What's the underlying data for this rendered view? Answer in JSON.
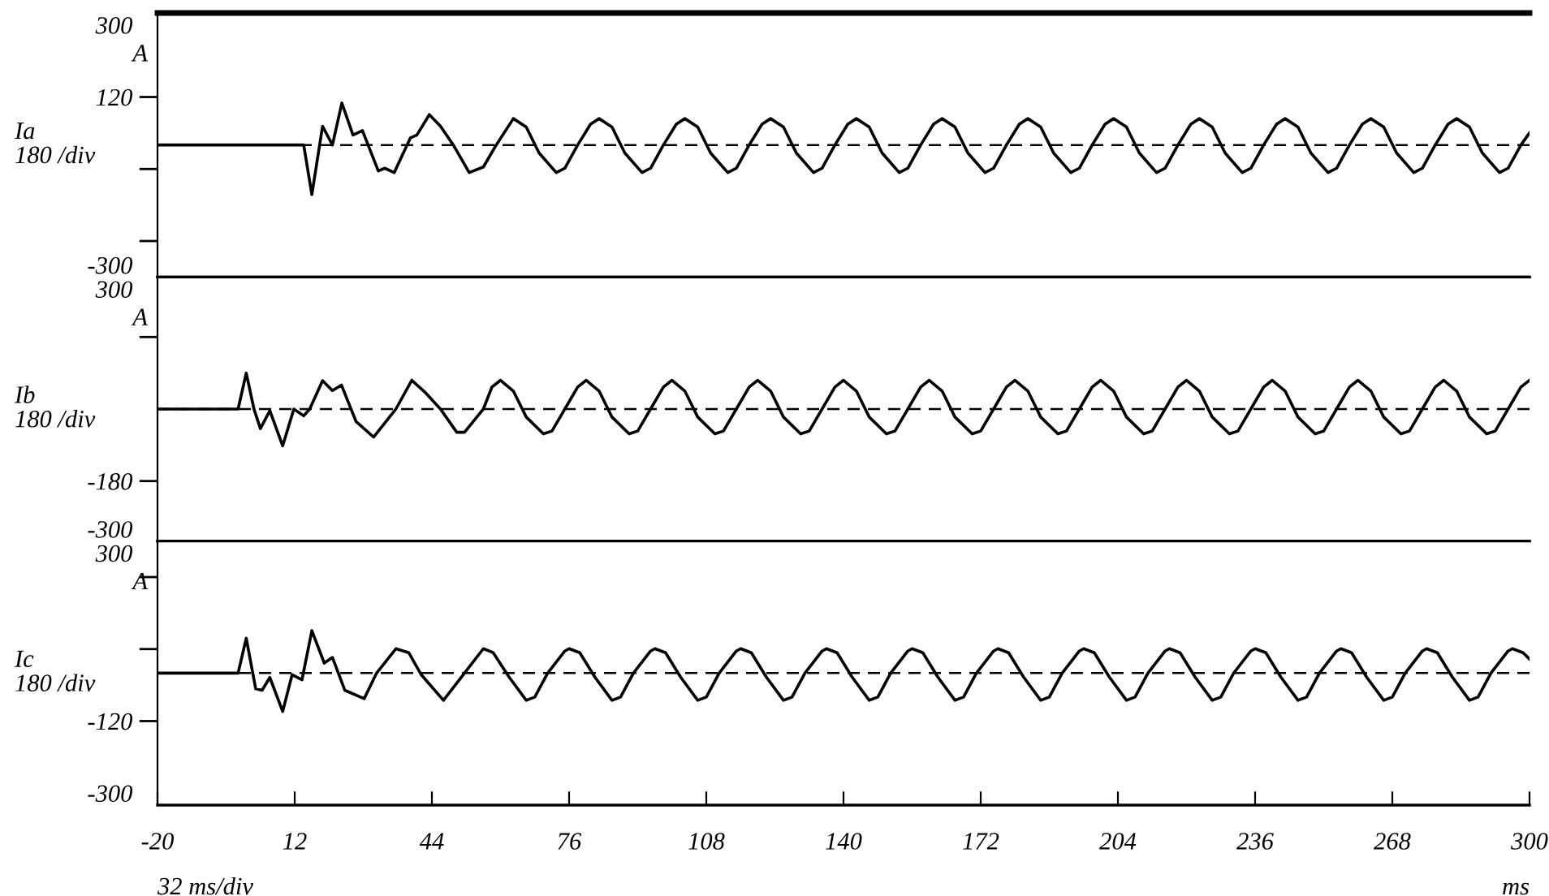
{
  "chart_data": [
    {
      "type": "line",
      "ylabel": "Ia\n180 /div",
      "annotations": [
        "A"
      ],
      "xlim": [
        -20,
        300
      ],
      "ylim": [
        -330,
        330
      ],
      "yticks": [
        300,
        120,
        {
          "value": -60,
          "label": null
        },
        {
          "value": -240,
          "label": null
        },
        {
          "value": -300,
          "label": "-300"
        }
      ],
      "tick_labels": "y",
      "grid": false,
      "legend": false,
      "marker": "none",
      "line_style": "solid",
      "ref_lines": [
        {
          "axis": "y",
          "value": 0,
          "label": null,
          "color": "#000000",
          "line_style": "dashed"
        }
      ],
      "series": [
        {
          "color": "#000000",
          "x": [
            -20,
            14.1,
            16,
            18.5,
            20.8,
            23,
            25.6,
            27.8,
            31.5,
            33,
            35.2,
            39,
            40.5,
            43.4,
            46,
            49,
            52.7,
            56,
            59,
            63,
            66,
            69,
            73,
            75,
            78,
            81,
            83,
            86,
            89,
            93,
            95,
            98,
            101,
            103,
            106,
            109,
            113,
            115,
            118,
            121,
            123,
            126,
            129,
            133,
            135,
            138,
            141,
            143,
            146,
            149,
            153,
            155,
            158,
            161,
            163,
            166,
            169,
            173,
            175,
            178,
            181,
            183,
            186,
            189,
            193,
            195,
            198,
            201,
            203,
            206,
            209,
            213,
            215,
            218,
            221,
            223,
            226,
            229,
            233,
            235,
            238,
            241,
            243,
            246,
            249,
            253,
            255,
            258,
            261,
            263,
            266,
            269,
            273,
            275,
            278,
            281,
            283,
            286,
            289,
            293,
            295,
            298,
            300
          ],
          "values": [
            0,
            0,
            -124,
            47,
            0,
            105,
            25,
            36,
            -65,
            -58,
            -69,
            18,
            25,
            76,
            47,
            0,
            -69,
            -55,
            0,
            66,
            45,
            -20,
            -69,
            -58,
            0,
            52,
            66,
            45,
            -20,
            -69,
            -58,
            0,
            52,
            66,
            45,
            -20,
            -69,
            -58,
            0,
            52,
            66,
            45,
            -20,
            -69,
            -58,
            0,
            52,
            66,
            45,
            -20,
            -69,
            -58,
            0,
            52,
            66,
            45,
            -20,
            -69,
            -58,
            0,
            52,
            66,
            45,
            -20,
            -69,
            -58,
            0,
            52,
            66,
            45,
            -20,
            -69,
            -58,
            0,
            52,
            66,
            45,
            -20,
            -69,
            -58,
            0,
            52,
            66,
            45,
            -20,
            -69,
            -58,
            0,
            52,
            66,
            45,
            -20,
            -69,
            -58,
            0,
            52,
            66,
            45,
            -20,
            -69,
            -58,
            0,
            30
          ]
        }
      ]
    },
    {
      "type": "line",
      "ylabel": "Ib\n180 /div",
      "annotations": [
        "A"
      ],
      "xlim": [
        -20,
        300
      ],
      "ylim": [
        -330,
        330
      ],
      "yticks": [
        300,
        {
          "value": 180,
          "label": null
        },
        -180,
        {
          "value": -300,
          "label": "-300"
        }
      ],
      "tick_labels": "y",
      "grid": false,
      "legend": false,
      "marker": "none",
      "line_style": "solid",
      "ref_lines": [
        {
          "axis": "y",
          "value": 0,
          "label": null,
          "color": "#000000",
          "line_style": "dashed"
        }
      ],
      "series": [
        {
          "color": "#000000",
          "x": [
            -20,
            -1.2,
            0.7,
            2.5,
            4,
            6.2,
            9.2,
            11.8,
            14.1,
            15.5,
            18.5,
            20.8,
            22.9,
            26.3,
            30.4,
            35.6,
            39.3,
            42.3,
            46,
            49.8,
            51.6,
            56,
            58,
            60,
            63,
            66,
            70,
            72,
            75,
            78,
            80,
            83,
            86,
            90,
            92,
            95,
            98,
            100,
            103,
            106,
            110,
            112,
            115,
            118,
            120,
            123,
            126,
            130,
            132,
            135,
            138,
            140,
            143,
            146,
            150,
            152,
            155,
            158,
            160,
            163,
            166,
            170,
            172,
            175,
            178,
            180,
            183,
            186,
            190,
            192,
            195,
            198,
            200,
            203,
            206,
            210,
            212,
            215,
            218,
            220,
            223,
            226,
            230,
            232,
            235,
            238,
            240,
            243,
            246,
            250,
            252,
            255,
            258,
            260,
            263,
            266,
            270,
            272,
            275,
            278,
            280,
            283,
            286,
            290,
            292,
            295,
            298,
            300
          ],
          "values": [
            0,
            0,
            90,
            0,
            -49,
            -4,
            -92,
            0,
            -17,
            0,
            71,
            46,
            60,
            -31,
            -70,
            0,
            72,
            43,
            0,
            -58,
            -58,
            0,
            55,
            72,
            45,
            -20,
            -62,
            -55,
            0,
            55,
            72,
            45,
            -20,
            -62,
            -55,
            0,
            55,
            72,
            45,
            -20,
            -62,
            -55,
            0,
            55,
            72,
            45,
            -20,
            -62,
            -55,
            0,
            55,
            72,
            45,
            -20,
            -62,
            -55,
            0,
            55,
            72,
            45,
            -20,
            -62,
            -55,
            0,
            55,
            72,
            45,
            -20,
            -62,
            -55,
            0,
            55,
            72,
            45,
            -20,
            -62,
            -55,
            0,
            55,
            72,
            45,
            -20,
            -62,
            -55,
            0,
            55,
            72,
            45,
            -20,
            -62,
            -55,
            0,
            55,
            72,
            45,
            -20,
            -62,
            -55,
            0,
            55,
            72,
            45,
            -20,
            -62,
            -55,
            0,
            55,
            72
          ]
        }
      ]
    },
    {
      "type": "line",
      "ylabel": "Ic\n180 /div",
      "xlabel": "ms",
      "annotations": [
        "A",
        "32 ms/div"
      ],
      "xlim": [
        -20,
        300
      ],
      "xticks": [
        -20,
        12,
        44,
        76,
        108,
        140,
        172,
        204,
        236,
        268,
        300
      ],
      "ylim": [
        -330,
        330
      ],
      "yticks": [
        300,
        {
          "value": 240,
          "label": null
        },
        {
          "value": 60,
          "label": null
        },
        -120,
        {
          "value": -300,
          "label": "-300"
        }
      ],
      "grid": false,
      "legend": false,
      "marker": "none",
      "line_style": "solid",
      "ref_lines": [
        {
          "axis": "y",
          "value": 0,
          "label": null,
          "color": "#000000",
          "line_style": "dashed"
        }
      ],
      "series": [
        {
          "color": "#000000",
          "x": [
            -20,
            -1.2,
            0.7,
            2.9,
            4.4,
            6.2,
            9.2,
            11.4,
            13.7,
            16,
            18.9,
            20.8,
            23.7,
            28.2,
            31.1,
            35.6,
            38.6,
            41.5,
            46.7,
            51.6,
            56,
            58.3,
            62,
            66,
            68,
            71,
            75,
            76,
            78.5,
            82,
            86,
            88,
            91,
            95,
            96,
            98.5,
            102,
            106,
            108,
            111,
            115,
            116,
            118.5,
            122,
            126,
            128,
            131,
            135,
            136,
            138.5,
            142,
            146,
            148,
            151,
            155,
            156,
            158.5,
            162,
            166,
            168,
            171,
            175,
            176,
            178.5,
            182,
            186,
            188,
            191,
            195,
            196,
            198.5,
            202,
            206,
            208,
            211,
            215,
            216,
            218.5,
            222,
            226,
            228,
            231,
            235,
            236,
            238.5,
            242,
            246,
            248,
            251,
            255,
            256,
            258.5,
            262,
            266,
            268,
            271,
            275,
            276,
            278.5,
            282,
            286,
            288,
            291,
            295,
            296,
            298.5,
            300
          ],
          "values": [
            0,
            0,
            87,
            -39,
            -43,
            -11,
            -96,
            -4,
            -17,
            106,
            25,
            39,
            -43,
            -64,
            0,
            61,
            51,
            -4,
            -68,
            0,
            61,
            51,
            -10,
            -68,
            -60,
            0,
            55,
            61,
            51,
            -10,
            -68,
            -60,
            0,
            55,
            61,
            51,
            -10,
            -68,
            -60,
            0,
            55,
            61,
            51,
            -10,
            -68,
            -60,
            0,
            55,
            61,
            51,
            -10,
            -68,
            -60,
            0,
            55,
            61,
            51,
            -10,
            -68,
            -60,
            0,
            55,
            61,
            51,
            -10,
            -68,
            -60,
            0,
            55,
            61,
            51,
            -10,
            -68,
            -60,
            0,
            55,
            61,
            51,
            -10,
            -68,
            -60,
            0,
            55,
            61,
            51,
            -10,
            -68,
            -60,
            0,
            55,
            61,
            51,
            -10,
            -68,
            -60,
            0,
            55,
            61,
            51,
            -10,
            -68,
            -60,
            0,
            55,
            61,
            51,
            35
          ]
        }
      ]
    }
  ]
}
